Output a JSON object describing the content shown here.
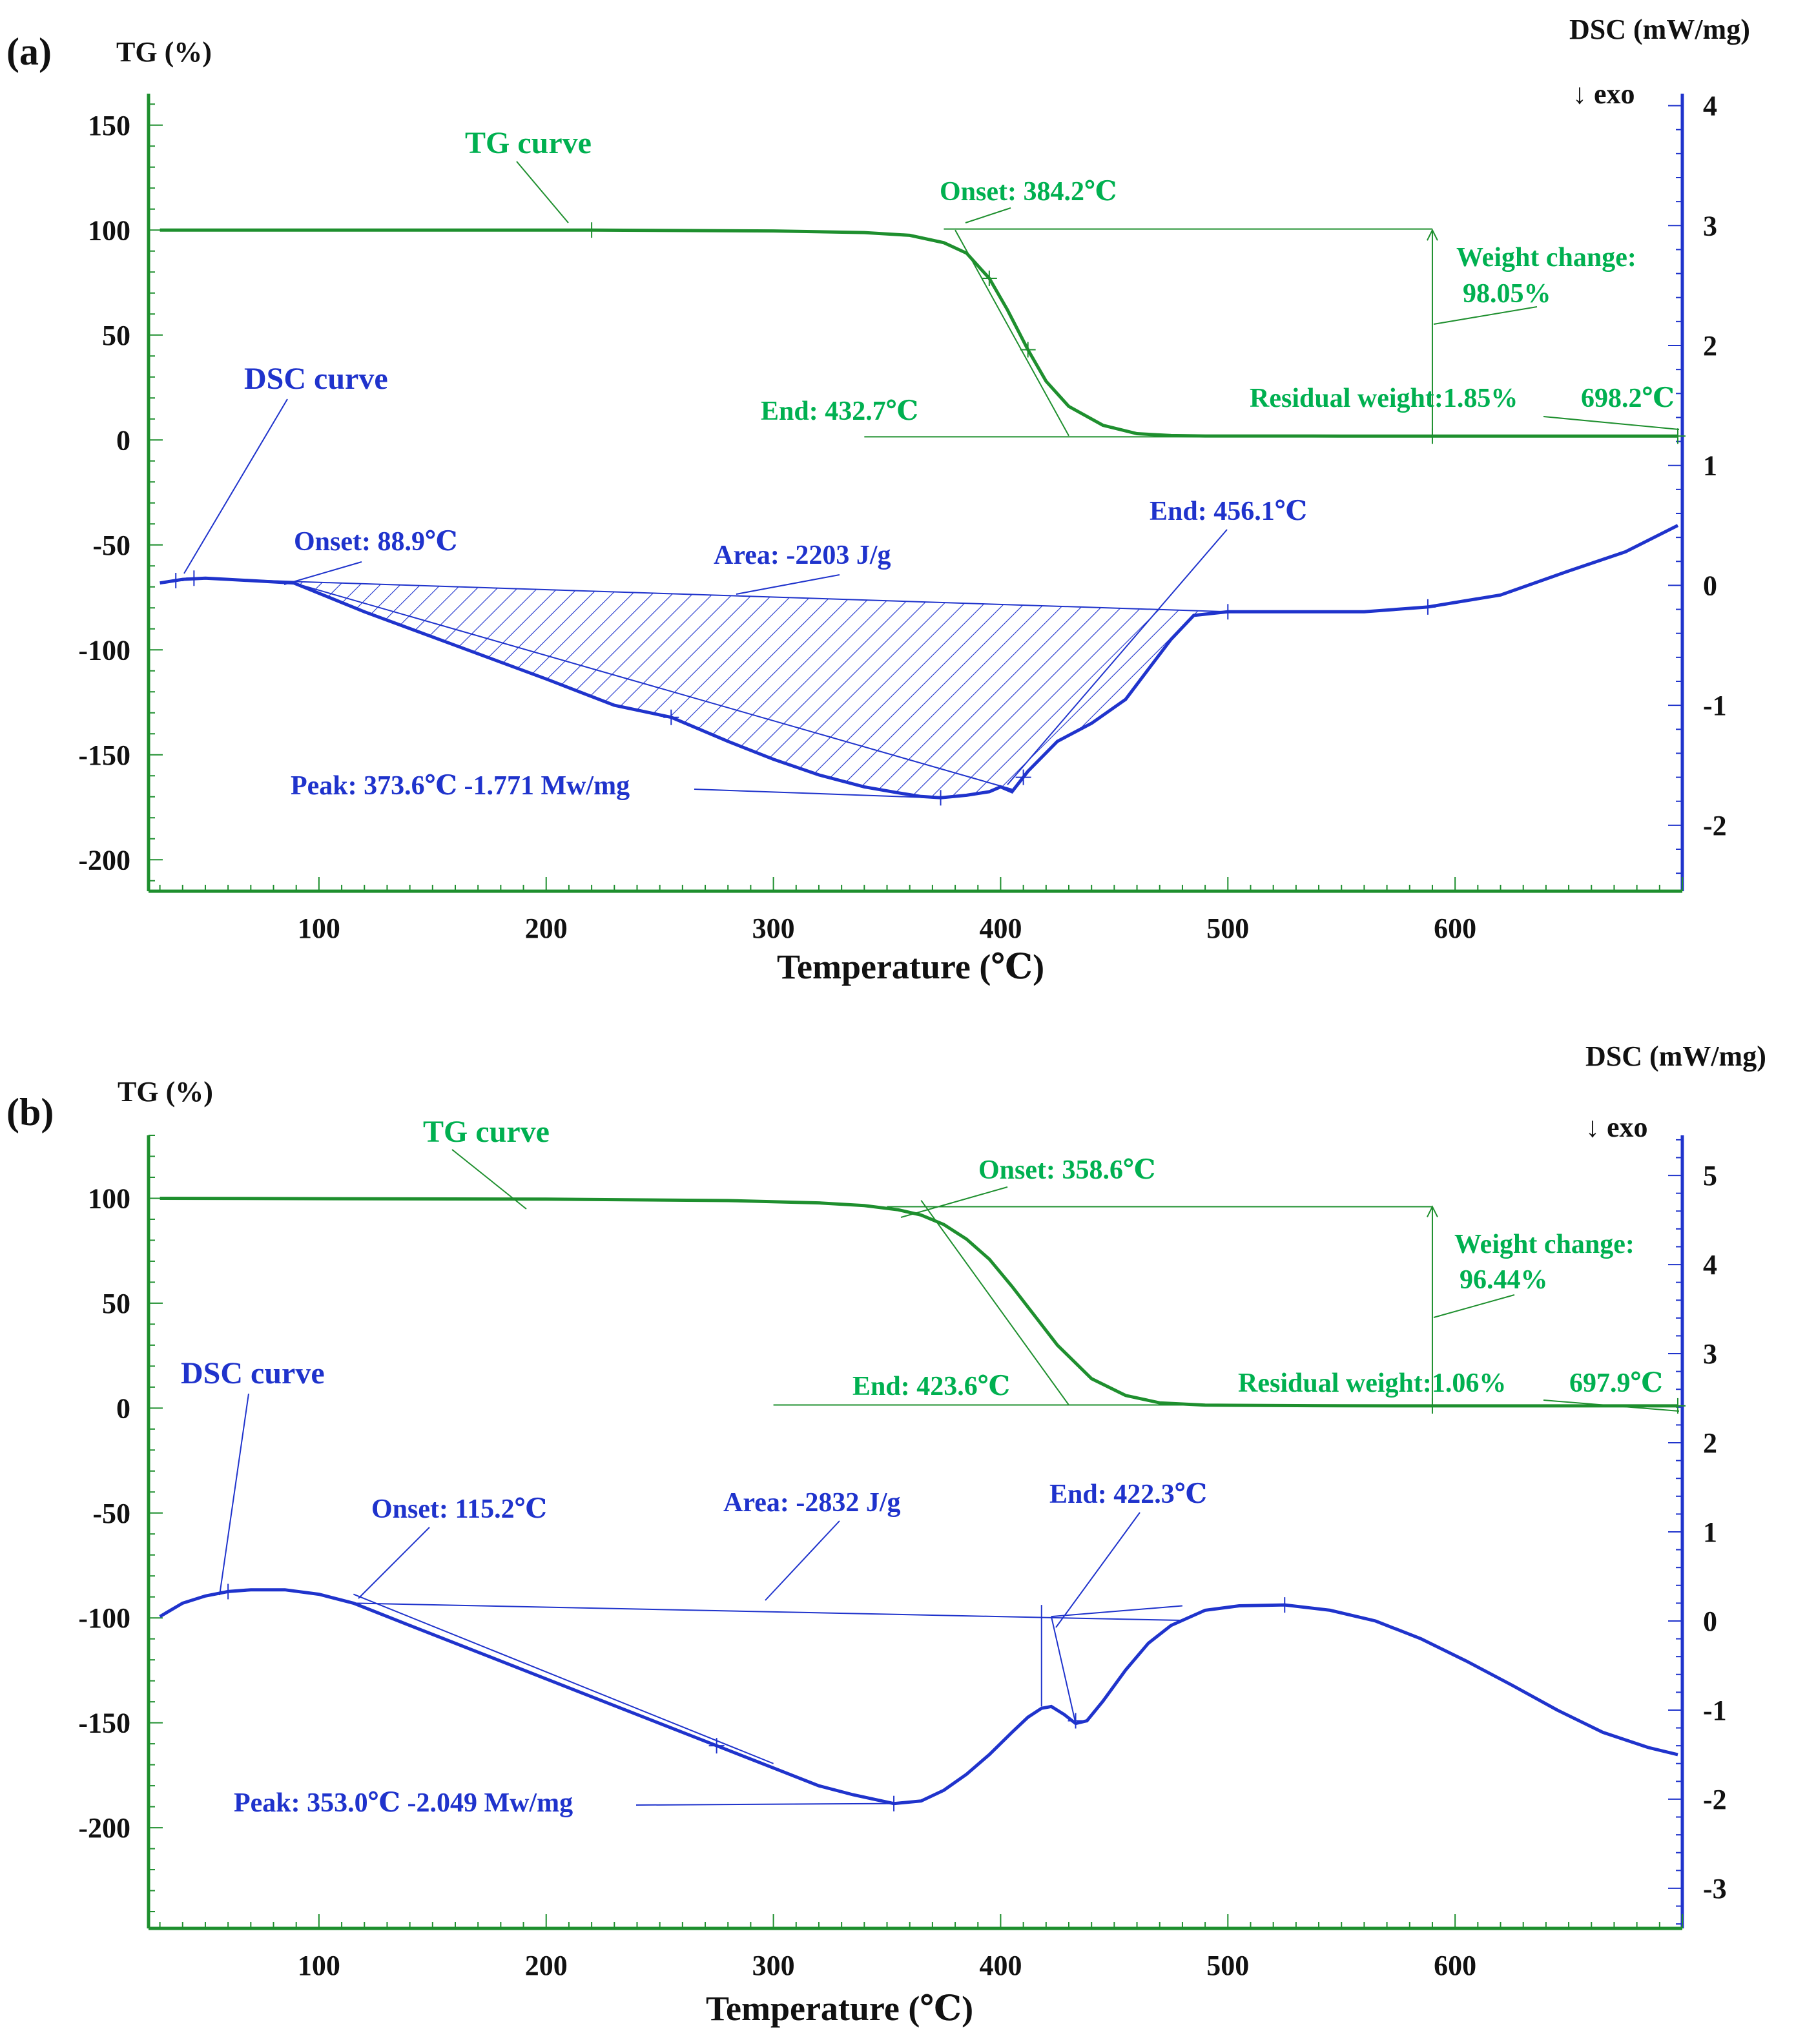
{
  "colors": {
    "tg": "#1e8f2e",
    "tg_text": "#00b050",
    "dsc": "#1f33cc",
    "dsc_text": "#1f33cc",
    "axis_left": "#1e8f2e",
    "axis_right": "#1f33cc"
  },
  "chart_data": [
    {
      "type": "line",
      "panel": "(a)",
      "xlabel": "Temperature (℃)",
      "ylabel_left": "TG (%)",
      "ylabel_right": "DSC (mW/mg)",
      "exo_label": "↓  exo",
      "xlim": [
        25,
        700
      ],
      "ylim_left": [
        -215,
        165
      ],
      "ylim_right": [
        -2.55,
        4.1
      ],
      "x_ticks": [
        100,
        200,
        300,
        400,
        500,
        600
      ],
      "y_left_ticks": [
        150,
        100,
        50,
        0,
        -50,
        -100,
        -150,
        -200
      ],
      "y_right_ticks": [
        4,
        3,
        2,
        1,
        0,
        -1,
        -2
      ],
      "series": [
        {
          "name": "TG curve",
          "axis": "left",
          "x": [
            30,
            220,
            300,
            340,
            360,
            375,
            385,
            395,
            403,
            412,
            420,
            430,
            445,
            460,
            475,
            490,
            550,
            698
          ],
          "y": [
            100,
            100,
            99.6,
            98.8,
            97.5,
            94,
            89,
            77,
            62,
            43,
            28,
            16,
            7,
            3,
            2.1,
            1.9,
            1.85,
            1.85
          ]
        },
        {
          "name": "DSC curve",
          "axis": "right",
          "x": [
            30,
            40,
            50,
            60,
            88.9,
            120,
            160,
            200,
            230,
            255,
            280,
            300,
            320,
            340,
            355,
            365,
            373.6,
            385,
            395,
            400,
            405,
            412,
            425,
            440,
            455,
            465,
            475,
            485,
            500,
            530,
            560,
            588,
            620,
            650,
            675,
            698
          ],
          "y": [
            0.02,
            0.05,
            0.06,
            0.05,
            0.02,
            -0.22,
            -0.5,
            -0.78,
            -1.0,
            -1.1,
            -1.3,
            -1.45,
            -1.58,
            -1.68,
            -1.73,
            -1.76,
            -1.771,
            -1.75,
            -1.72,
            -1.68,
            -1.72,
            -1.55,
            -1.3,
            -1.15,
            -0.95,
            -0.7,
            -0.45,
            -0.25,
            -0.22,
            -0.22,
            -0.22,
            -0.18,
            -0.08,
            0.12,
            0.28,
            0.5
          ]
        }
      ],
      "annotations": {
        "tg_curve_label": "TG curve",
        "dsc_curve_label": "DSC curve",
        "tg_onset": "Onset: 384.2℃",
        "tg_end": "End: 432.7℃",
        "weight_change_1": "Weight change:",
        "weight_change_2": "98.05%",
        "residual": "Residual weight:1.85%",
        "final_temp": "698.2℃",
        "dsc_onset": "Onset: 88.9℃",
        "dsc_area": "Area: -2203 J/g",
        "dsc_end": "End: 456.1℃",
        "dsc_peak": "Peak: 373.6℃   -1.771 Mw/mg"
      }
    },
    {
      "type": "line",
      "panel": "(b)",
      "xlabel": "Temperature (℃)",
      "ylabel_left": "TG (%)",
      "ylabel_right": "DSC (mW/mg)",
      "exo_label": "↓  exo",
      "xlim": [
        25,
        700
      ],
      "ylim_left": [
        -248,
        130
      ],
      "ylim_right": [
        -3.45,
        5.45
      ],
      "x_ticks": [
        100,
        200,
        300,
        400,
        500,
        600
      ],
      "y_left_ticks": [
        100,
        50,
        0,
        -50,
        -100,
        -150,
        -200
      ],
      "y_right_ticks": [
        5,
        4,
        3,
        2,
        1,
        0,
        -1,
        -2,
        -3
      ],
      "series": [
        {
          "name": "TG curve",
          "axis": "left",
          "x": [
            30,
            200,
            280,
            320,
            340,
            355,
            365,
            375,
            385,
            395,
            405,
            415,
            425,
            440,
            455,
            470,
            490,
            550,
            698
          ],
          "y": [
            100,
            99.6,
            98.9,
            97.8,
            96.5,
            94.5,
            92,
            87.5,
            80.5,
            71,
            58,
            44,
            30,
            14,
            6,
            2.5,
            1.4,
            1.1,
            1.06
          ]
        },
        {
          "name": "DSC curve",
          "axis": "right",
          "x": [
            30,
            40,
            50,
            60,
            70,
            85,
            100,
            115.2,
            140,
            170,
            200,
            230,
            260,
            275,
            300,
            320,
            335,
            353,
            365,
            375,
            385,
            395,
            405,
            412,
            418,
            422.3,
            428,
            433,
            438,
            445,
            455,
            465,
            475,
            490,
            505,
            525,
            545,
            565,
            585,
            605,
            625,
            645,
            665,
            685,
            698
          ],
          "y": [
            0.05,
            0.2,
            0.28,
            0.33,
            0.35,
            0.35,
            0.3,
            0.2,
            -0.05,
            -0.35,
            -0.65,
            -0.95,
            -1.25,
            -1.4,
            -1.65,
            -1.85,
            -1.95,
            -2.049,
            -2.02,
            -1.9,
            -1.72,
            -1.5,
            -1.25,
            -1.08,
            -0.98,
            -0.96,
            -1.05,
            -1.15,
            -1.12,
            -0.9,
            -0.55,
            -0.25,
            -0.05,
            0.12,
            0.17,
            0.18,
            0.12,
            0.0,
            -0.2,
            -0.45,
            -0.72,
            -1.0,
            -1.25,
            -1.42,
            -1.5
          ]
        }
      ],
      "annotations": {
        "tg_curve_label": "TG curve",
        "dsc_curve_label": "DSC curve",
        "tg_onset": "Onset: 358.6℃",
        "tg_end": "End: 423.6℃",
        "weight_change_1": "Weight change:",
        "weight_change_2": "96.44%",
        "residual": "Residual weight:1.06%",
        "final_temp": "697.9℃",
        "dsc_onset": "Onset: 115.2℃",
        "dsc_area": "Area: -2832 J/g",
        "dsc_end": "End: 422.3℃",
        "dsc_peak": "Peak: 353.0℃   -2.049 Mw/mg"
      }
    }
  ]
}
